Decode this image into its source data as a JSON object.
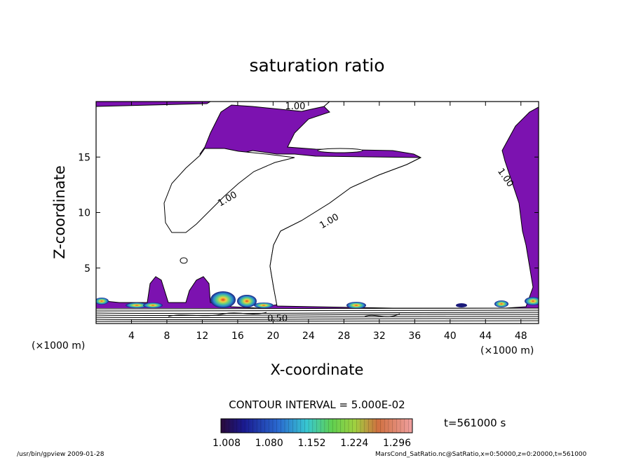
{
  "chart_data": {
    "type": "heatmap",
    "title": "saturation ratio",
    "xlabel": "X-coordinate",
    "ylabel": "Z-coordinate",
    "x_units": "(×1000 m)",
    "xlim": [
      0,
      50
    ],
    "ylim": [
      0,
      20
    ],
    "x_ticks": [
      "4",
      "8",
      "12",
      "16",
      "20",
      "24",
      "28",
      "32",
      "36",
      "40",
      "44",
      "48"
    ],
    "y_ticks": [
      "5",
      "10",
      "15"
    ],
    "contour_labels": [
      {
        "text": "1.00",
        "x": 22.5,
        "z": 19.3
      },
      {
        "text": "1.00",
        "x": 15.0,
        "z": 11.0
      },
      {
        "text": "1.00",
        "x": 26.5,
        "z": 9.0
      },
      {
        "text": "1.00",
        "x": 46.0,
        "z": 13.0
      },
      {
        "text": "0.50",
        "x": 20.5,
        "z": 0.2
      }
    ],
    "contour_interval": "CONTOUR INTERVAL = 5.000E-02",
    "colorbar_ticks": [
      "1.008",
      "1.080",
      "1.152",
      "1.224",
      "1.296"
    ],
    "colorbar_range": [
      1.008,
      1.296
    ],
    "time_label": "t=561000 s",
    "colors": {
      "supersaturated_fill": "#7c12b0",
      "high_low": "#0a0a6e",
      "high_mid": "#2bb8c8",
      "high_upper": "#9be040",
      "high_max": "#e04020"
    }
  },
  "footer": {
    "left": "/usr/bin/gpview   2009-01-28",
    "right": "MarsCond_SatRatio.nc@SatRatio,x=0:50000,z=0:20000,t=561000"
  }
}
